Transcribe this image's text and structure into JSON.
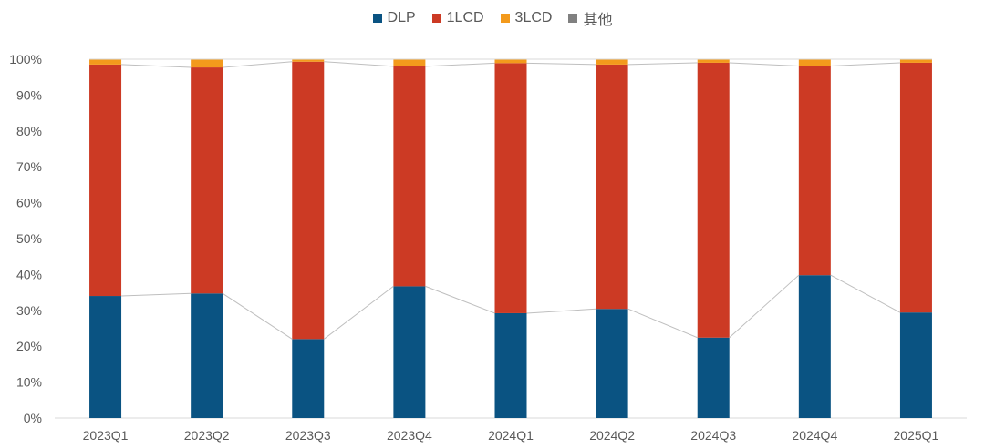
{
  "chart_data": {
    "type": "bar",
    "stacked": true,
    "categories": [
      "2023Q1",
      "2023Q2",
      "2023Q3",
      "2023Q4",
      "2024Q1",
      "2024Q2",
      "2024Q3",
      "2024Q4",
      "2025Q1"
    ],
    "series": [
      {
        "name": "DLP",
        "color": "#0a5382",
        "values": [
          34,
          34.7,
          22,
          36.7,
          29.2,
          30.4,
          22.4,
          39.8,
          29.4
        ]
      },
      {
        "name": "1LCD",
        "color": "#cc3a24",
        "values": [
          64.5,
          63,
          77.3,
          61.3,
          69.7,
          68.1,
          76.6,
          58.3,
          69.6
        ]
      },
      {
        "name": "3LCD",
        "color": "#f39a1c",
        "values": [
          1.5,
          2.3,
          0.7,
          2.0,
          1.1,
          1.5,
          1.0,
          1.9,
          1.0
        ]
      },
      {
        "name": "其他",
        "color": "#808080",
        "values": [
          0,
          0,
          0,
          0,
          0,
          0,
          0,
          0,
          0
        ]
      }
    ],
    "yticks": [
      "0%",
      "10%",
      "20%",
      "30%",
      "40%",
      "50%",
      "60%",
      "70%",
      "80%",
      "90%",
      "100%"
    ],
    "ylim": [
      0,
      100
    ],
    "grid": false,
    "legend": "top-center",
    "title": "",
    "xlabel": "",
    "ylabel": ""
  }
}
